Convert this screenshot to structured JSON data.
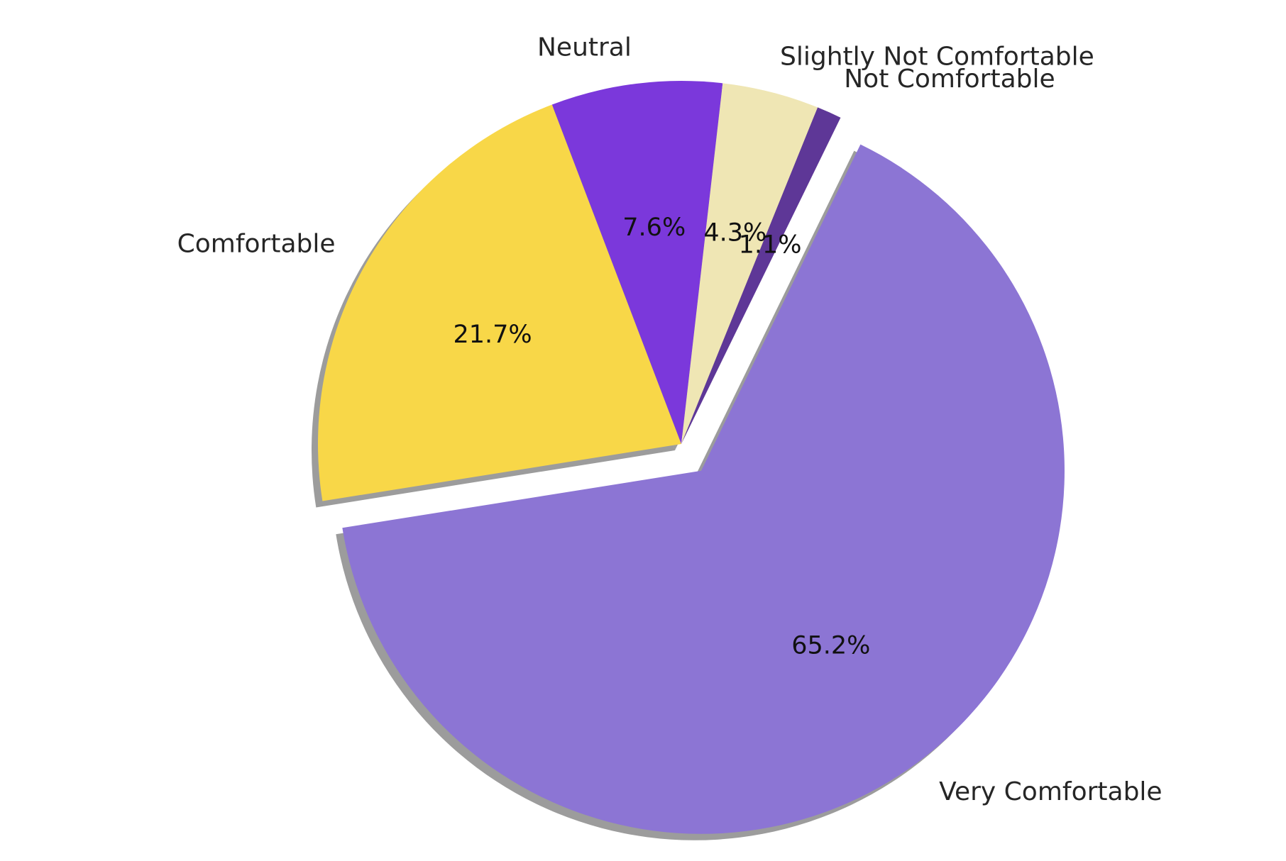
{
  "chart_data": {
    "type": "pie",
    "title": "",
    "slices": [
      {
        "label": "Very Comfortable",
        "value": 65.2,
        "pct_label": "65.2%",
        "color": "#8c75d4",
        "exploded": true
      },
      {
        "label": "Comfortable",
        "value": 21.7,
        "pct_label": "21.7%",
        "color": "#f8d748",
        "exploded": false
      },
      {
        "label": "Neutral",
        "value": 7.6,
        "pct_label": "7.6%",
        "color": "#7b38db",
        "exploded": false
      },
      {
        "label": "Slightly Not Comfortable",
        "value": 4.3,
        "pct_label": "4.3%",
        "color": "#efe6b4",
        "exploded": false
      },
      {
        "label": "Not Comfortable",
        "value": 1.1,
        "pct_label": "1.1%",
        "color": "#5e3797",
        "exploded": false
      }
    ],
    "shadow": true,
    "legend": "none"
  }
}
